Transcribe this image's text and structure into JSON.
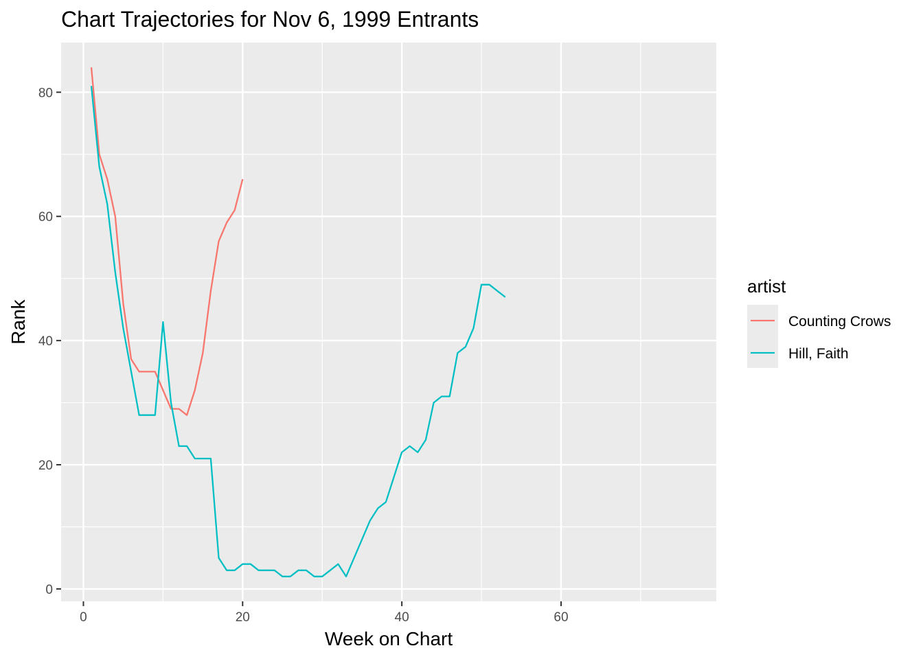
{
  "chart_data": {
    "type": "line",
    "title": "Chart Trajectories for Nov 6, 1999 Entrants",
    "xlabel": "Week on Chart",
    "ylabel": "Rank",
    "xlim": [
      -2.8,
      79.5
    ],
    "ylim": [
      -2,
      88
    ],
    "x_ticks": [
      0,
      20,
      40,
      60
    ],
    "x_tick_labels": [
      "0",
      "20",
      "40",
      "60"
    ],
    "y_ticks": [
      0,
      20,
      40,
      60,
      80
    ],
    "y_tick_labels": [
      "0",
      "20",
      "40",
      "60",
      "80"
    ],
    "grid": true,
    "legend": {
      "title": "artist",
      "position": "right"
    },
    "series": [
      {
        "name": "Counting Crows",
        "color": "#F8766D",
        "x": [
          1,
          2,
          3,
          4,
          5,
          6,
          7,
          8,
          9,
          10,
          11,
          12,
          13,
          14,
          15,
          16,
          17,
          18,
          19,
          20
        ],
        "y": [
          84,
          70,
          66,
          60,
          46,
          37,
          35,
          35,
          35,
          32,
          29,
          29,
          28,
          32,
          38,
          48,
          56,
          59,
          61,
          66
        ]
      },
      {
        "name": "Hill, Faith",
        "color": "#00BFC4",
        "x": [
          1,
          2,
          3,
          4,
          5,
          6,
          7,
          8,
          9,
          10,
          11,
          12,
          13,
          14,
          15,
          16,
          17,
          18,
          19,
          20,
          21,
          22,
          23,
          24,
          25,
          26,
          27,
          28,
          29,
          30,
          31,
          32,
          33,
          34,
          35,
          36,
          37,
          38,
          39,
          40,
          41,
          42,
          43,
          44,
          45,
          46,
          47,
          48,
          49,
          50,
          51,
          52,
          53
        ],
        "y": [
          81,
          68,
          62,
          51,
          42,
          35,
          28,
          28,
          28,
          43,
          30,
          23,
          23,
          21,
          21,
          21,
          5,
          3,
          3,
          4,
          4,
          3,
          3,
          3,
          2,
          2,
          3,
          3,
          2,
          2,
          3,
          4,
          2,
          5,
          8,
          11,
          13,
          14,
          18,
          22,
          23,
          22,
          24,
          30,
          31,
          31,
          38,
          39,
          42,
          49,
          49,
          48,
          47
        ]
      }
    ]
  }
}
